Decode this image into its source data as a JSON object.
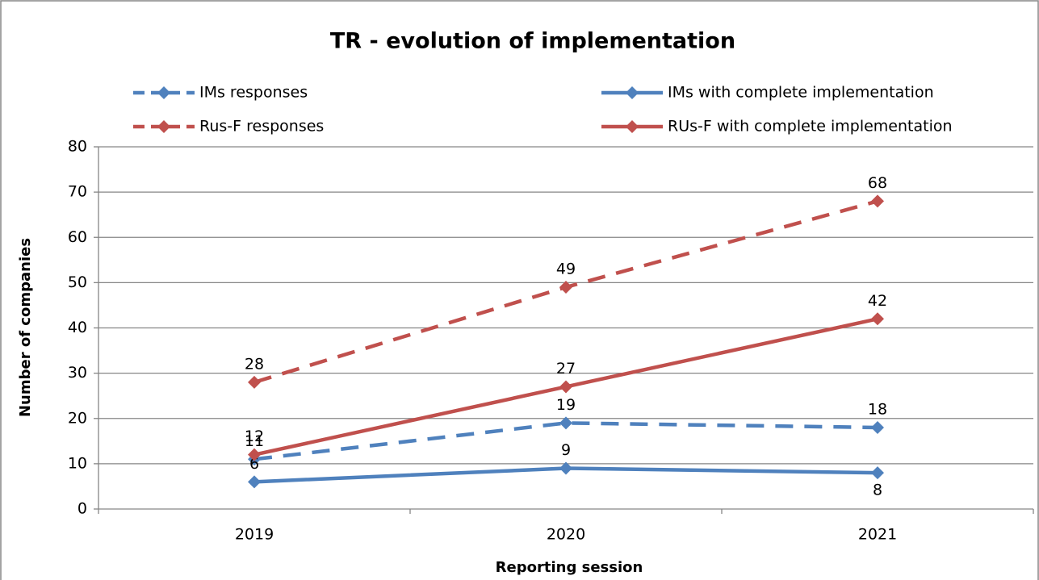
{
  "chart_data": {
    "type": "line",
    "title": "TR - evolution of implementation",
    "xlabel": "Reporting session",
    "ylabel": "Number of companies",
    "categories": [
      "2019",
      "2020",
      "2021"
    ],
    "series": [
      {
        "name": "IMs responses",
        "color": "#4f81bd",
        "dashed": true,
        "values": [
          11,
          19,
          18
        ],
        "label_positions": [
          "above",
          "above",
          "above"
        ]
      },
      {
        "name": "IMs with complete implementation",
        "color": "#4f81bd",
        "dashed": false,
        "values": [
          6,
          9,
          8
        ],
        "label_positions": [
          "above",
          "above",
          "below"
        ]
      },
      {
        "name": "Rus-F responses",
        "color": "#c0504d",
        "dashed": true,
        "values": [
          28,
          49,
          68
        ],
        "label_positions": [
          "above",
          "above",
          "above"
        ]
      },
      {
        "name": "RUs-F with complete implementation",
        "color": "#c0504d",
        "dashed": false,
        "values": [
          12,
          27,
          42
        ],
        "label_positions": [
          "above",
          "above",
          "above"
        ]
      }
    ],
    "ylim": [
      0,
      80
    ],
    "yticks": [
      0,
      10,
      20,
      30,
      40,
      50,
      60,
      70,
      80
    ],
    "grid": true,
    "legend": "top"
  }
}
